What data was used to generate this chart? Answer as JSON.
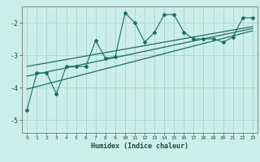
{
  "xlabel": "Humidex (Indice chaleur)",
  "ylabel": "",
  "bg_color": "#cceee8",
  "grid_color": "#aad8d0",
  "line_color": "#1a6e62",
  "xlim": [
    -0.5,
    23.5
  ],
  "ylim": [
    -5.4,
    -1.5
  ],
  "xticks": [
    0,
    1,
    2,
    3,
    4,
    5,
    6,
    7,
    8,
    9,
    10,
    11,
    12,
    13,
    14,
    15,
    16,
    17,
    18,
    19,
    20,
    21,
    22,
    23
  ],
  "yticks": [
    -5,
    -4,
    -3,
    -2
  ],
  "scatter_x": [
    0,
    1,
    2,
    3,
    4,
    5,
    6,
    7,
    8,
    9,
    10,
    11,
    12,
    13,
    14,
    15,
    16,
    17,
    18,
    19,
    20,
    21,
    22,
    23
  ],
  "scatter_y": [
    -4.7,
    -3.55,
    -3.55,
    -4.2,
    -3.35,
    -3.35,
    -3.35,
    -2.55,
    -3.1,
    -3.05,
    -1.7,
    -2.0,
    -2.6,
    -2.3,
    -1.75,
    -1.75,
    -2.3,
    -2.5,
    -2.5,
    -2.5,
    -2.6,
    -2.45,
    -1.85,
    -1.85
  ],
  "trend1_x": [
    0,
    23
  ],
  "trend1_y": [
    -4.05,
    -2.25
  ],
  "trend2_x": [
    0,
    23
  ],
  "trend2_y": [
    -3.65,
    -2.18
  ],
  "trend3_x": [
    0,
    23
  ],
  "trend3_y": [
    -3.35,
    -2.12
  ]
}
